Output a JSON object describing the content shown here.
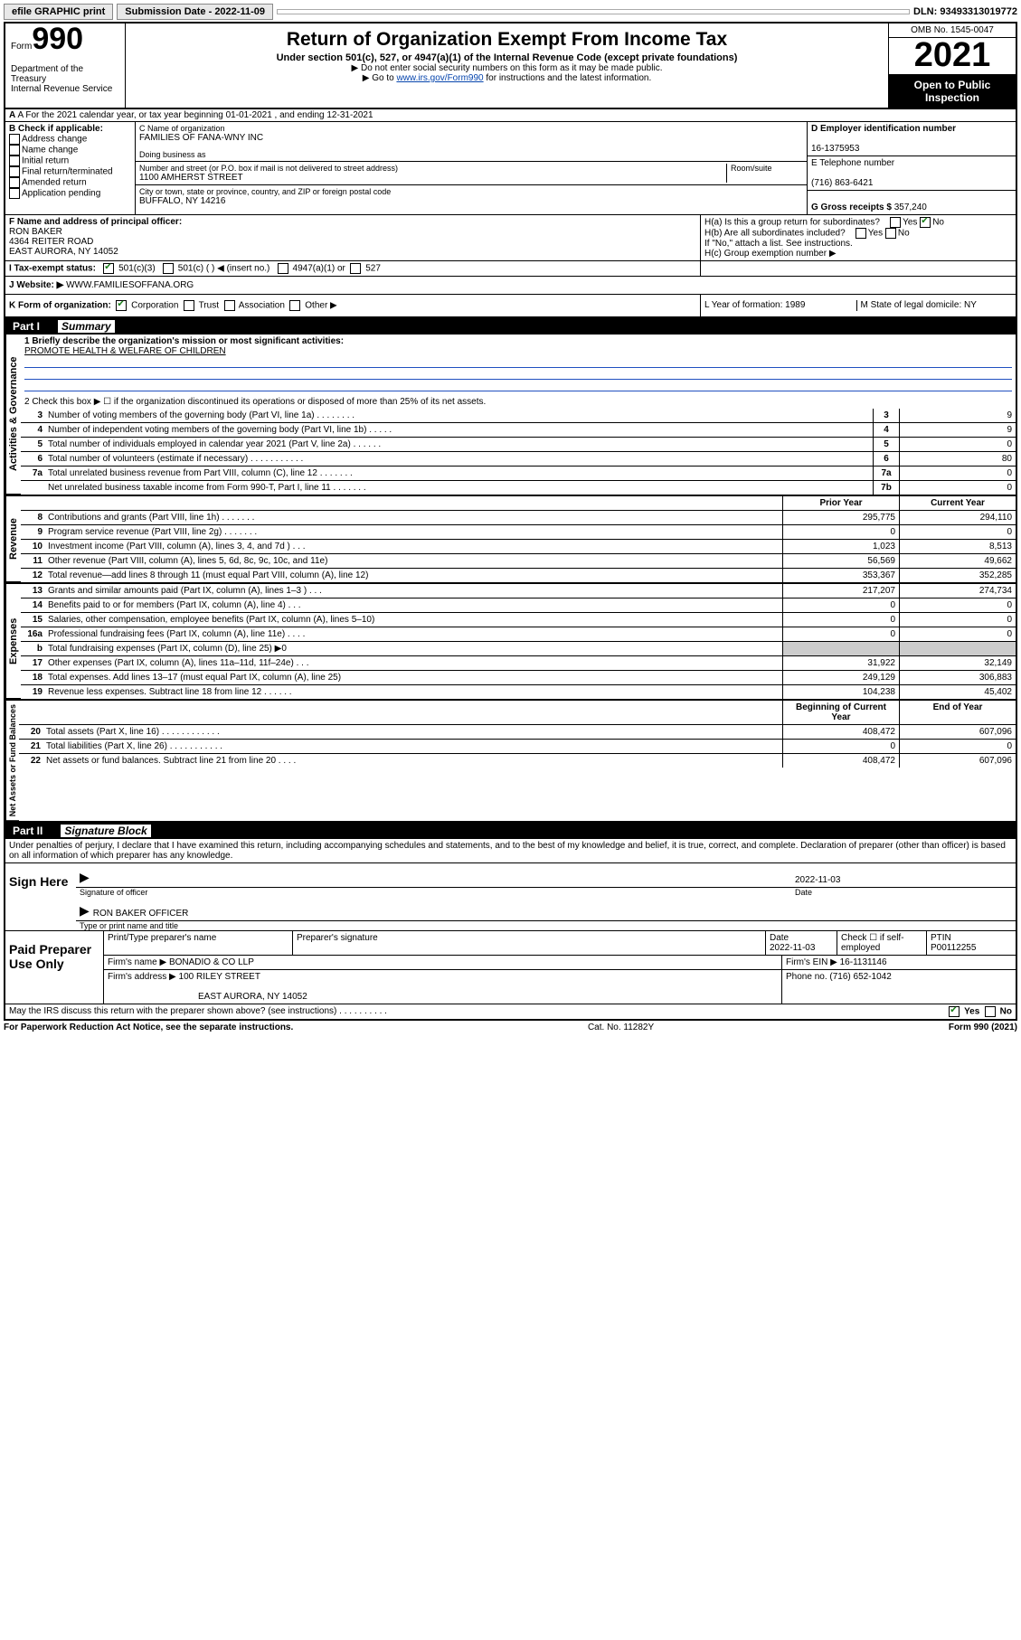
{
  "topbar": {
    "efile": "efile GRAPHIC print",
    "subdate_lbl": "Submission Date - 2022-11-09",
    "dln": "DLN: 93493313019772"
  },
  "header": {
    "form_word": "Form",
    "form_num": "990",
    "dept": "Department of the Treasury\nInternal Revenue Service",
    "title": "Return of Organization Exempt From Income Tax",
    "sub1": "Under section 501(c), 527, or 4947(a)(1) of the Internal Revenue Code (except private foundations)",
    "sub2": "▶ Do not enter social security numbers on this form as it may be made public.",
    "sub3_pre": "▶ Go to ",
    "sub3_link": "www.irs.gov/Form990",
    "sub3_post": " for instructions and the latest information.",
    "omb": "OMB No. 1545-0047",
    "year": "2021",
    "open": "Open to Public Inspection"
  },
  "rowA": {
    "text": "A For the 2021 calendar year, or tax year beginning 01-01-2021    , and ending 12-31-2021"
  },
  "colB": {
    "lbl": "B Check if applicable:",
    "items": [
      "Address change",
      "Name change",
      "Initial return",
      "Final return/terminated",
      "Amended return",
      "Application pending"
    ]
  },
  "colC": {
    "name_lbl": "C Name of organization",
    "name": "FAMILIES OF FANA-WNY INC",
    "dba_lbl": "Doing business as",
    "addr_lbl": "Number and street (or P.O. box if mail is not delivered to street address)",
    "addr": "1100 AMHERST STREET",
    "room_lbl": "Room/suite",
    "city_lbl": "City or town, state or province, country, and ZIP or foreign postal code",
    "city": "BUFFALO, NY  14216"
  },
  "colD": {
    "ein_lbl": "D Employer identification number",
    "ein": "16-1375953",
    "tel_lbl": "E Telephone number",
    "tel": "(716) 863-6421",
    "gross_lbl": "G Gross receipts $",
    "gross": "357,240"
  },
  "rowF": {
    "lbl": "F  Name and address of principal officer:",
    "name": "RON BAKER",
    "addr1": "4364 REITER ROAD",
    "addr2": "EAST AURORA, NY  14052"
  },
  "rowH": {
    "ha": "H(a)  Is this a group return for subordinates?",
    "hb": "H(b)  Are all subordinates included?",
    "hb_note": "If \"No,\" attach a list. See instructions.",
    "hc": "H(c)  Group exemption number ▶"
  },
  "rowI": {
    "lbl": "I    Tax-exempt status:",
    "opts": [
      "501(c)(3)",
      "501(c) (  ) ◀ (insert no.)",
      "4947(a)(1) or",
      "527"
    ]
  },
  "rowJ": {
    "lbl": "J    Website: ▶",
    "val": "WWW.FAMILIESOFFANA.ORG"
  },
  "rowK": {
    "lbl": "K Form of organization:",
    "opts": [
      "Corporation",
      "Trust",
      "Association",
      "Other ▶"
    ],
    "L": "L Year of formation: 1989",
    "M": "M State of legal domicile: NY"
  },
  "partI": {
    "label": "Part I",
    "title": "Summary"
  },
  "mission": {
    "lbl": "1   Briefly describe the organization's mission or most significant activities:",
    "val": "PROMOTE HEALTH & WELFARE OF CHILDREN"
  },
  "line2": "2   Check this box ▶ ☐  if the organization discontinued its operations or disposed of more than 25% of its net assets.",
  "gov_lines": [
    {
      "n": "3",
      "t": "Number of voting members of the governing body (Part VI, line 1a)   .    .    .    .    .    .    .    .",
      "r": "3",
      "v": "9"
    },
    {
      "n": "4",
      "t": "Number of independent voting members of the governing body (Part VI, line 1b)   .    .    .    .    .",
      "r": "4",
      "v": "9"
    },
    {
      "n": "5",
      "t": "Total number of individuals employed in calendar year 2021 (Part V, line 2a)   .    .    .    .    .    .",
      "r": "5",
      "v": "0"
    },
    {
      "n": "6",
      "t": "Total number of volunteers (estimate if necessary)   .    .    .    .    .    .    .    .    .    .    .",
      "r": "6",
      "v": "80"
    },
    {
      "n": "7a",
      "t": "Total unrelated business revenue from Part VIII, column (C), line 12   .    .    .    .    .    .    .",
      "r": "7a",
      "v": "0"
    },
    {
      "n": "",
      "t": "Net unrelated business taxable income from Form 990-T, Part I, line 11   .    .    .    .    .    .    .",
      "r": "7b",
      "v": "0"
    }
  ],
  "rev_hdr": {
    "prior": "Prior Year",
    "curr": "Current Year"
  },
  "rev_lines": [
    {
      "n": "8",
      "t": "Contributions and grants (Part VIII, line 1h)   .    .    .    .    .    .    .",
      "p": "295,775",
      "c": "294,110"
    },
    {
      "n": "9",
      "t": "Program service revenue (Part VIII, line 2g)   .    .    .    .    .    .    .",
      "p": "0",
      "c": "0"
    },
    {
      "n": "10",
      "t": "Investment income (Part VIII, column (A), lines 3, 4, and 7d )   .    .    .",
      "p": "1,023",
      "c": "8,513"
    },
    {
      "n": "11",
      "t": "Other revenue (Part VIII, column (A), lines 5, 6d, 8c, 9c, 10c, and 11e)",
      "p": "56,569",
      "c": "49,662"
    },
    {
      "n": "12",
      "t": "Total revenue—add lines 8 through 11 (must equal Part VIII, column (A), line 12)",
      "p": "353,367",
      "c": "352,285"
    }
  ],
  "exp_lines": [
    {
      "n": "13",
      "t": "Grants and similar amounts paid (Part IX, column (A), lines 1–3 )   .    .    .",
      "p": "217,207",
      "c": "274,734"
    },
    {
      "n": "14",
      "t": "Benefits paid to or for members (Part IX, column (A), line 4)   .    .    .",
      "p": "0",
      "c": "0"
    },
    {
      "n": "15",
      "t": "Salaries, other compensation, employee benefits (Part IX, column (A), lines 5–10)",
      "p": "0",
      "c": "0"
    },
    {
      "n": "16a",
      "t": "Professional fundraising fees (Part IX, column (A), line 11e)   .    .    .    .",
      "p": "0",
      "c": "0"
    },
    {
      "n": "b",
      "t": "Total fundraising expenses (Part IX, column (D), line 25) ▶0",
      "p": "",
      "c": "",
      "shade": true
    },
    {
      "n": "17",
      "t": "Other expenses (Part IX, column (A), lines 11a–11d, 11f–24e)   .    .    .",
      "p": "31,922",
      "c": "32,149"
    },
    {
      "n": "18",
      "t": "Total expenses. Add lines 13–17 (must equal Part IX, column (A), line 25)",
      "p": "249,129",
      "c": "306,883"
    },
    {
      "n": "19",
      "t": "Revenue less expenses. Subtract line 18 from line 12   .    .    .    .    .    .",
      "p": "104,238",
      "c": "45,402"
    }
  ],
  "net_hdr": {
    "prior": "Beginning of Current Year",
    "curr": "End of Year"
  },
  "net_lines": [
    {
      "n": "20",
      "t": "Total assets (Part X, line 16)   .    .    .    .    .    .    .    .    .    .    .    .",
      "p": "408,472",
      "c": "607,096"
    },
    {
      "n": "21",
      "t": "Total liabilities (Part X, line 26)   .    .    .    .    .    .    .    .    .    .    .",
      "p": "0",
      "c": "0"
    },
    {
      "n": "22",
      "t": "Net assets or fund balances. Subtract line 21 from line 20   .    .    .    .",
      "p": "408,472",
      "c": "607,096"
    }
  ],
  "partII": {
    "label": "Part II",
    "title": "Signature Block"
  },
  "sig_intro": "Under penalties of perjury, I declare that I have examined this return, including accompanying schedules and statements, and to the best of my knowledge and belief, it is true, correct, and complete. Declaration of preparer (other than officer) is based on all information of which preparer has any knowledge.",
  "sign": {
    "lbl": "Sign Here",
    "sig_lbl": "Signature of officer",
    "date": "2022-11-03",
    "date_lbl": "Date",
    "name": "RON BAKER OFFICER",
    "name_lbl": "Type or print name and title"
  },
  "paid": {
    "lbl": "Paid Preparer Use Only",
    "h1": "Print/Type preparer's name",
    "h2": "Preparer's signature",
    "h3": "Date",
    "h3v": "2022-11-03",
    "h4": "Check ☐ if self-employed",
    "h5": "PTIN",
    "h5v": "P00112255",
    "firm_lbl": "Firm's name    ▶",
    "firm": "BONADIO & CO LLP",
    "fein_lbl": "Firm's EIN ▶",
    "fein": "16-1131146",
    "addr_lbl": "Firm's address ▶",
    "addr1": "100 RILEY STREET",
    "addr2": "EAST AURORA, NY  14052",
    "phone_lbl": "Phone no.",
    "phone": "(716) 652-1042"
  },
  "may": "May the IRS discuss this return with the preparer shown above? (see instructions)   .    .    .    .    .    .    .    .    .    .",
  "footer": {
    "l": "For Paperwork Reduction Act Notice, see the separate instructions.",
    "c": "Cat. No. 11282Y",
    "r": "Form 990 (2021)"
  },
  "vtabs": {
    "gov": "Activities & Governance",
    "rev": "Revenue",
    "exp": "Expenses",
    "net": "Net Assets or Fund Balances"
  }
}
